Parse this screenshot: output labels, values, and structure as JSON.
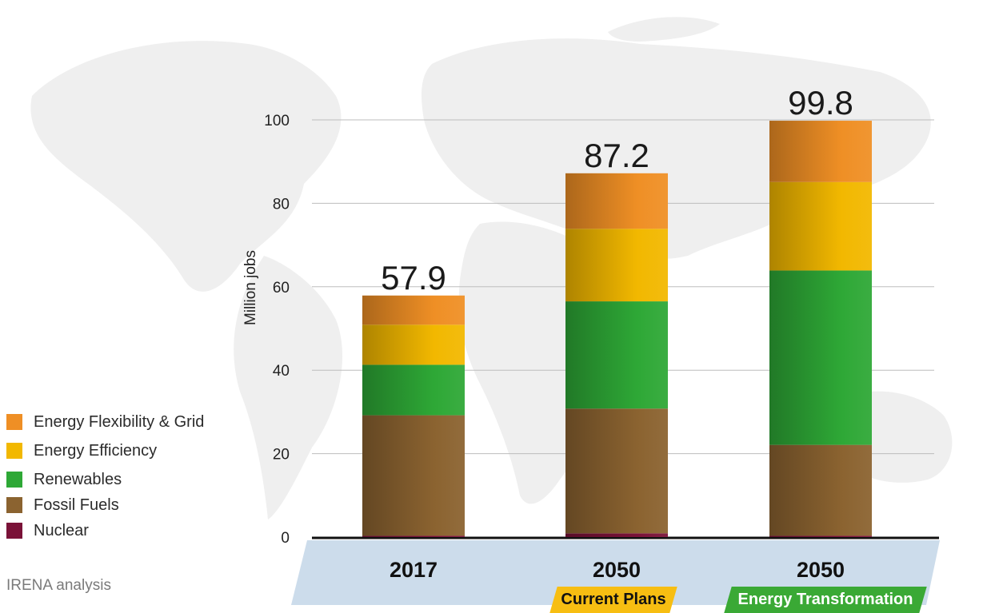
{
  "chart_data": {
    "type": "bar",
    "stacked": true,
    "ylabel": "Million jobs",
    "ylim": [
      0,
      100
    ],
    "yticks": [
      0,
      20,
      40,
      60,
      80,
      100
    ],
    "grid": true,
    "categories": [
      {
        "label": "2017",
        "scenario": ""
      },
      {
        "label": "2050",
        "scenario": "Current Plans"
      },
      {
        "label": "2050",
        "scenario": "Energy Transformation"
      }
    ],
    "totals": [
      "57.9",
      "87.2",
      "99.8"
    ],
    "series": [
      {
        "name": "Nuclear",
        "color": "#7a1238",
        "values": [
          0.3,
          0.9,
          0.3
        ]
      },
      {
        "name": "Fossil Fuels",
        "color": "#8b6330",
        "values": [
          28.9,
          29.9,
          21.8
        ]
      },
      {
        "name": "Renewables",
        "color": "#2ea836",
        "values": [
          12.1,
          25.7,
          41.8
        ]
      },
      {
        "name": "Energy Efficiency",
        "color": "#f2b800",
        "values": [
          9.6,
          17.4,
          21.2
        ]
      },
      {
        "name": "Energy Flexibility & Grid",
        "color": "#ef8f25",
        "values": [
          7.0,
          13.3,
          14.7
        ]
      }
    ],
    "legend_position": "left",
    "scenario_colors": {
      "Current Plans": "#f7be12",
      "Energy Transformation": "#3aa935"
    }
  },
  "legend": [
    {
      "name": "Energy Flexibility & Grid",
      "color": "#ef8f25"
    },
    {
      "name": "Energy Efficiency",
      "color": "#f2b800"
    },
    {
      "name": "Renewables",
      "color": "#2ea836"
    },
    {
      "name": "Fossil Fuels",
      "color": "#8b6330"
    },
    {
      "name": "Nuclear",
      "color": "#7a1238"
    }
  ],
  "source": "IRENA analysis"
}
